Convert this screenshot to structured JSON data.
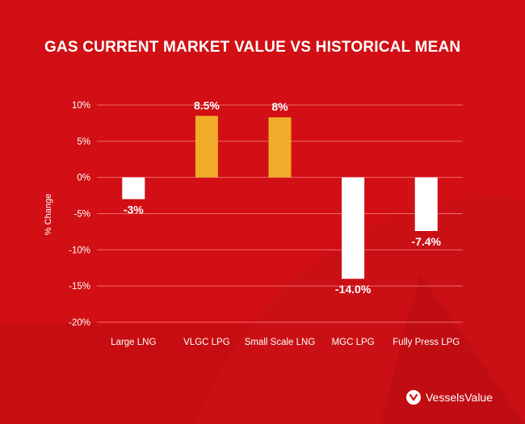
{
  "chart_data": {
    "type": "bar",
    "title": "GAS CURRENT MARKET VALUE VS HISTORICAL MEAN",
    "ylabel": "% Change",
    "xlabel": "",
    "categories": [
      "Large LNG",
      "VLGC LPG",
      "Small Scale LNG",
      "MGC LPG",
      "Fully Press LPG"
    ],
    "values": [
      -3,
      8.5,
      8.3,
      -14.0,
      -7.4
    ],
    "data_labels": [
      "-3%",
      "8.5%",
      "8%",
      "-14.0%",
      "-7.4%"
    ],
    "ylim": [
      -20,
      10
    ],
    "yticks": [
      10,
      5,
      0,
      -5,
      -10,
      -15,
      -20
    ],
    "ytick_labels": [
      "10%",
      "5%",
      "0%",
      "-5%",
      "-10%",
      "-15%",
      "-20%"
    ],
    "grid": true,
    "colors": {
      "positive": "#f0ac2a",
      "negative": "#ffffff",
      "background": "#d10f14",
      "grid": "#ee6a6c",
      "text": "#ffffff"
    }
  },
  "brand": {
    "name": "VesselsValue",
    "icon": "vesselsvalue-logo-icon"
  }
}
